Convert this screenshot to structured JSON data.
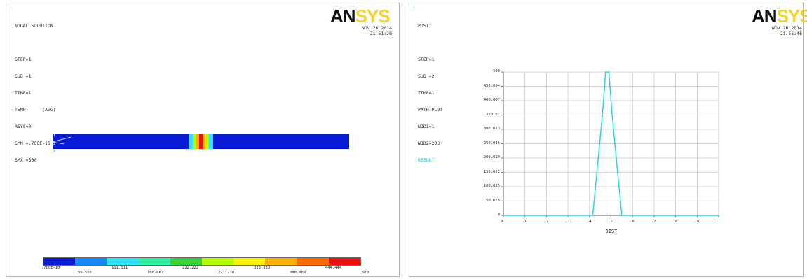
{
  "left_window": {
    "corner_mark": "1",
    "info_lines": [
      "NODAL SOLUTION",
      "",
      "STEP=1",
      "SUB =1",
      "TIME=1",
      "TEMP      (AVG)",
      "RSYS=0",
      "SMN =.700E-10",
      "SMX =500"
    ],
    "logo_dark": "AN",
    "logo_yellow": "SYS",
    "date": "NOV 26 2014",
    "time": "21:51:20",
    "origin_marks": [
      "Y",
      "Z",
      "X"
    ],
    "contour_colors": [
      "#0a1bd8",
      "#168bff",
      "#2fe3ff",
      "#33f0a0",
      "#38d33a",
      "#b4ff00",
      "#fff500",
      "#ffb000",
      "#ff6a00",
      "#ef1010"
    ],
    "legend_top": [
      ".700E-10",
      "111.111",
      "222.222",
      "333.333",
      "444.444"
    ],
    "legend_bottom": [
      "55.556",
      "166.667",
      "277.778",
      "388.889",
      "500"
    ]
  },
  "right_window": {
    "corner_mark": "1",
    "info_lines": [
      "POST1",
      "",
      "STEP=1",
      "SUB =2",
      "TIME=1",
      "PATH PLOT",
      "NOD1=1",
      "NOD2=233"
    ],
    "result_label": "RESULT",
    "logo_dark": "AN",
    "logo_yellow": "SYS",
    "date": "NOV 26 2014",
    "time": "21:55:46",
    "result_color": "#29d7e0"
  },
  "chart_data": {
    "type": "line",
    "title": "",
    "xlabel": "DIST",
    "ylabel": "",
    "xlim": [
      0,
      1
    ],
    "ylim": [
      0,
      500
    ],
    "grid": true,
    "x_ticks": [
      "0",
      ".1",
      ".2",
      ".3",
      ".4",
      ".5",
      ".6",
      ".7",
      ".8",
      ".9",
      "1"
    ],
    "y_ticks": [
      "0",
      "50.025",
      "100.025",
      "150.022",
      "200.019",
      "250.016",
      "300.013",
      "350.01",
      "400.007",
      "450.004",
      "500"
    ],
    "series": [
      {
        "name": "RESULT",
        "x": [
          0,
          0.415,
          0.46,
          0.475,
          0.49,
          0.505,
          0.55,
          1.0
        ],
        "y": [
          0,
          0,
          350,
          500,
          500,
          350,
          0,
          0
        ]
      }
    ]
  }
}
